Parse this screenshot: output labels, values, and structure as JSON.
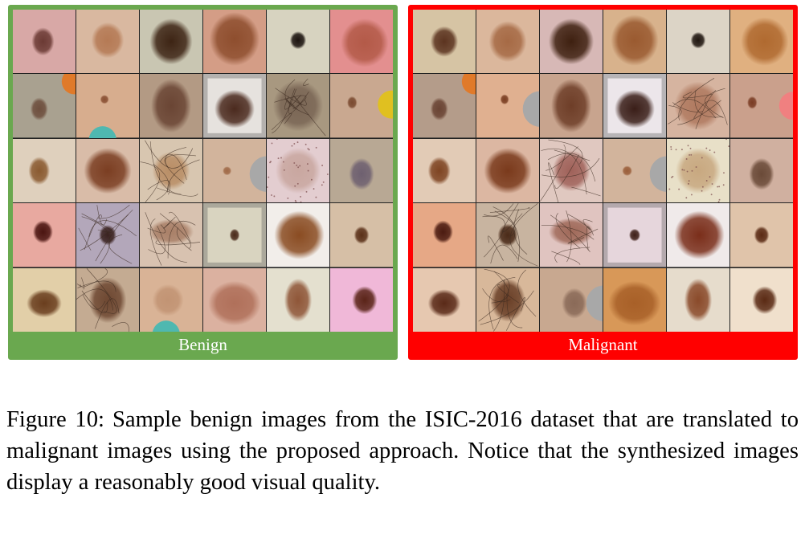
{
  "panels": [
    {
      "label": "Benign",
      "color": "#6aa84f",
      "tiles": [
        {
          "bg": "#d8a8a6",
          "lesion": "#6b3a34",
          "lx": 0.48,
          "ly": 0.5,
          "rx": 0.18,
          "ry": 0.22,
          "extra": "none"
        },
        {
          "bg": "#d9b8a0",
          "lesion": "#b57a55",
          "lx": 0.5,
          "ly": 0.48,
          "rx": 0.26,
          "ry": 0.28,
          "extra": "none"
        },
        {
          "bg": "#c9c6b2",
          "lesion": "#3d2414",
          "lx": 0.5,
          "ly": 0.5,
          "rx": 0.34,
          "ry": 0.36,
          "extra": "none"
        },
        {
          "bg": "#d49d86",
          "lesion": "#8e4e2e",
          "lx": 0.5,
          "ly": 0.46,
          "rx": 0.4,
          "ry": 0.42,
          "extra": "none"
        },
        {
          "bg": "#d7d3c0",
          "lesion": "#1c1410",
          "lx": 0.5,
          "ly": 0.48,
          "rx": 0.13,
          "ry": 0.14,
          "extra": "none"
        },
        {
          "bg": "#e38f8f",
          "lesion": "#b35a48",
          "lx": 0.55,
          "ly": 0.52,
          "rx": 0.38,
          "ry": 0.38,
          "extra": "none"
        },
        {
          "bg": "#a9a190",
          "lesion": "#6e4f3e",
          "lx": 0.42,
          "ly": 0.55,
          "rx": 0.14,
          "ry": 0.18,
          "extra": "orange"
        },
        {
          "bg": "#d7ad8e",
          "lesion": "#8a5033",
          "lx": 0.45,
          "ly": 0.4,
          "rx": 0.07,
          "ry": 0.07,
          "extra": "teal"
        },
        {
          "bg": "#b39a84",
          "lesion": "#6a4534",
          "lx": 0.5,
          "ly": 0.5,
          "rx": 0.32,
          "ry": 0.42,
          "extra": "none"
        },
        {
          "bg": "#e6e2de",
          "lesion": "#4b2a1e",
          "lx": 0.5,
          "ly": 0.55,
          "rx": 0.32,
          "ry": 0.3,
          "extra": "vignette"
        },
        {
          "bg": "#a89880",
          "lesion": "#7a6655",
          "lx": 0.5,
          "ly": 0.5,
          "rx": 0.4,
          "ry": 0.4,
          "extra": "hair"
        },
        {
          "bg": "#c9a890",
          "lesion": "#7a4a30",
          "lx": 0.35,
          "ly": 0.45,
          "rx": 0.08,
          "ry": 0.1,
          "extra": "yellow"
        },
        {
          "bg": "#dfd0bd",
          "lesion": "#8a5a30",
          "lx": 0.42,
          "ly": 0.5,
          "rx": 0.17,
          "ry": 0.22,
          "extra": "none"
        },
        {
          "bg": "#d9bca8",
          "lesion": "#7b3e22",
          "lx": 0.5,
          "ly": 0.5,
          "rx": 0.38,
          "ry": 0.36,
          "extra": "none"
        },
        {
          "bg": "#d8c6b0",
          "lesion": "#b98e66",
          "lx": 0.5,
          "ly": 0.5,
          "rx": 0.3,
          "ry": 0.3,
          "extra": "hair"
        },
        {
          "bg": "#d2b49c",
          "lesion": "#a06a48",
          "lx": 0.38,
          "ly": 0.5,
          "rx": 0.07,
          "ry": 0.07,
          "extra": "grey"
        },
        {
          "bg": "#e3cdd0",
          "lesion": "#c9a7a0",
          "lx": 0.5,
          "ly": 0.5,
          "rx": 0.36,
          "ry": 0.36,
          "extra": "dots"
        },
        {
          "bg": "#b8a894",
          "lesion": "#6e6070",
          "lx": 0.5,
          "ly": 0.55,
          "rx": 0.2,
          "ry": 0.25,
          "extra": "none"
        },
        {
          "bg": "#e8a9a0",
          "lesion": "#4a1410",
          "lx": 0.48,
          "ly": 0.45,
          "rx": 0.16,
          "ry": 0.18,
          "extra": "none"
        },
        {
          "bg": "#b3a7ba",
          "lesion": "#3a2220",
          "lx": 0.5,
          "ly": 0.5,
          "rx": 0.14,
          "ry": 0.16,
          "extra": "hair"
        },
        {
          "bg": "#d8c2b0",
          "lesion": "#a98068",
          "lx": 0.5,
          "ly": 0.45,
          "rx": 0.36,
          "ry": 0.2,
          "extra": "hair"
        },
        {
          "bg": "#d9d4c0",
          "lesion": "#4a2a1a",
          "lx": 0.5,
          "ly": 0.5,
          "rx": 0.08,
          "ry": 0.1,
          "extra": "vignette"
        },
        {
          "bg": "#f2eeea",
          "lesion": "#8a4c22",
          "lx": 0.52,
          "ly": 0.5,
          "rx": 0.4,
          "ry": 0.38,
          "extra": "none"
        },
        {
          "bg": "#d6bfa6",
          "lesion": "#5a3018",
          "lx": 0.5,
          "ly": 0.5,
          "rx": 0.12,
          "ry": 0.14,
          "extra": "none"
        },
        {
          "bg": "#e2cfa8",
          "lesion": "#6a3e1e",
          "lx": 0.5,
          "ly": 0.55,
          "rx": 0.28,
          "ry": 0.22,
          "extra": "none"
        },
        {
          "bg": "#c4ab92",
          "lesion": "#6e4832",
          "lx": 0.5,
          "ly": 0.5,
          "rx": 0.3,
          "ry": 0.36,
          "extra": "hair"
        },
        {
          "bg": "#d9b396",
          "lesion": "#c29474",
          "lx": 0.45,
          "ly": 0.5,
          "rx": 0.25,
          "ry": 0.25,
          "extra": "teal"
        },
        {
          "bg": "#dbb1a0",
          "lesion": "#b0705a",
          "lx": 0.5,
          "ly": 0.55,
          "rx": 0.42,
          "ry": 0.35,
          "extra": "none"
        },
        {
          "bg": "#e4e0cf",
          "lesion": "#8f5638",
          "lx": 0.5,
          "ly": 0.5,
          "rx": 0.22,
          "ry": 0.34,
          "extra": "none"
        },
        {
          "bg": "#f0b8d8",
          "lesion": "#5a2418",
          "lx": 0.55,
          "ly": 0.5,
          "rx": 0.2,
          "ry": 0.22,
          "extra": "none"
        }
      ]
    },
    {
      "label": "Malignant",
      "color": "#ff0000",
      "tiles": [
        {
          "bg": "#d6c4a4",
          "lesion": "#5c3420",
          "lx": 0.5,
          "ly": 0.5,
          "rx": 0.22,
          "ry": 0.24,
          "extra": "none"
        },
        {
          "bg": "#dbb79c",
          "lesion": "#a66a45",
          "lx": 0.5,
          "ly": 0.5,
          "rx": 0.3,
          "ry": 0.32,
          "extra": "none"
        },
        {
          "bg": "#d7b8b6",
          "lesion": "#3e2010",
          "lx": 0.5,
          "ly": 0.5,
          "rx": 0.36,
          "ry": 0.36,
          "extra": "none"
        },
        {
          "bg": "#d8b28c",
          "lesion": "#9a5a30",
          "lx": 0.5,
          "ly": 0.48,
          "rx": 0.38,
          "ry": 0.4,
          "extra": "none"
        },
        {
          "bg": "#dcd4c6",
          "lesion": "#201610",
          "lx": 0.5,
          "ly": 0.48,
          "rx": 0.12,
          "ry": 0.13,
          "extra": "none"
        },
        {
          "bg": "#e0b080",
          "lesion": "#b06a30",
          "lx": 0.55,
          "ly": 0.5,
          "rx": 0.38,
          "ry": 0.38,
          "extra": "none"
        },
        {
          "bg": "#b49c8a",
          "lesion": "#6a4434",
          "lx": 0.42,
          "ly": 0.55,
          "rx": 0.14,
          "ry": 0.18,
          "extra": "orange"
        },
        {
          "bg": "#e0b090",
          "lesion": "#7a3e22",
          "lx": 0.45,
          "ly": 0.4,
          "rx": 0.07,
          "ry": 0.08,
          "extra": "grey"
        },
        {
          "bg": "#c8a48e",
          "lesion": "#6e3e28",
          "lx": 0.5,
          "ly": 0.5,
          "rx": 0.32,
          "ry": 0.42,
          "extra": "none"
        },
        {
          "bg": "#ece6ea",
          "lesion": "#3a1e18",
          "lx": 0.5,
          "ly": 0.55,
          "rx": 0.32,
          "ry": 0.3,
          "extra": "vignette"
        },
        {
          "bg": "#d6b4a0",
          "lesion": "#b07a60",
          "lx": 0.5,
          "ly": 0.5,
          "rx": 0.38,
          "ry": 0.38,
          "extra": "hair"
        },
        {
          "bg": "#caa08c",
          "lesion": "#7a3c24",
          "lx": 0.35,
          "ly": 0.45,
          "rx": 0.08,
          "ry": 0.1,
          "extra": "pink"
        },
        {
          "bg": "#e2cbb6",
          "lesion": "#7e4422",
          "lx": 0.42,
          "ly": 0.5,
          "rx": 0.18,
          "ry": 0.22,
          "extra": "none"
        },
        {
          "bg": "#dcb7a2",
          "lesion": "#7a3a1c",
          "lx": 0.5,
          "ly": 0.5,
          "rx": 0.38,
          "ry": 0.36,
          "extra": "none"
        },
        {
          "bg": "#e0c8c0",
          "lesion": "#a0625a",
          "lx": 0.5,
          "ly": 0.5,
          "rx": 0.3,
          "ry": 0.32,
          "extra": "hair"
        },
        {
          "bg": "#d2b49c",
          "lesion": "#9a5e3a",
          "lx": 0.38,
          "ly": 0.5,
          "rx": 0.08,
          "ry": 0.08,
          "extra": "grey"
        },
        {
          "bg": "#e8e0c8",
          "lesion": "#c8a880",
          "lx": 0.5,
          "ly": 0.5,
          "rx": 0.36,
          "ry": 0.36,
          "extra": "dots"
        },
        {
          "bg": "#d0b0a0",
          "lesion": "#6a4a38",
          "lx": 0.5,
          "ly": 0.55,
          "rx": 0.2,
          "ry": 0.25,
          "extra": "none"
        },
        {
          "bg": "#e6a886",
          "lesion": "#4a1a10",
          "lx": 0.48,
          "ly": 0.45,
          "rx": 0.16,
          "ry": 0.18,
          "extra": "none"
        },
        {
          "bg": "#c8b4a0",
          "lesion": "#4a2a18",
          "lx": 0.5,
          "ly": 0.5,
          "rx": 0.16,
          "ry": 0.18,
          "extra": "hair"
        },
        {
          "bg": "#e0c4c0",
          "lesion": "#a06a5a",
          "lx": 0.5,
          "ly": 0.45,
          "rx": 0.36,
          "ry": 0.22,
          "extra": "hair"
        },
        {
          "bg": "#e6d6dc",
          "lesion": "#3e2018",
          "lx": 0.5,
          "ly": 0.5,
          "rx": 0.09,
          "ry": 0.1,
          "extra": "vignette"
        },
        {
          "bg": "#f0eaea",
          "lesion": "#7a2e1a",
          "lx": 0.52,
          "ly": 0.5,
          "rx": 0.4,
          "ry": 0.38,
          "extra": "none"
        },
        {
          "bg": "#e0c4aa",
          "lesion": "#5a2a14",
          "lx": 0.5,
          "ly": 0.5,
          "rx": 0.12,
          "ry": 0.14,
          "extra": "none"
        },
        {
          "bg": "#e6c8b0",
          "lesion": "#5a2a18",
          "lx": 0.5,
          "ly": 0.55,
          "rx": 0.26,
          "ry": 0.22,
          "extra": "none"
        },
        {
          "bg": "#d8b89a",
          "lesion": "#6a4028",
          "lx": 0.5,
          "ly": 0.5,
          "rx": 0.28,
          "ry": 0.34,
          "extra": "hair"
        },
        {
          "bg": "#c8a890",
          "lesion": "#8a6a58",
          "lx": 0.55,
          "ly": 0.55,
          "rx": 0.2,
          "ry": 0.24,
          "extra": "grey"
        },
        {
          "bg": "#d89858",
          "lesion": "#a86028",
          "lx": 0.5,
          "ly": 0.55,
          "rx": 0.42,
          "ry": 0.35,
          "extra": "none"
        },
        {
          "bg": "#e6dccc",
          "lesion": "#8a4a2a",
          "lx": 0.5,
          "ly": 0.5,
          "rx": 0.22,
          "ry": 0.34,
          "extra": "none"
        },
        {
          "bg": "#f0e0cc",
          "lesion": "#5a2a14",
          "lx": 0.55,
          "ly": 0.5,
          "rx": 0.2,
          "ry": 0.22,
          "extra": "none"
        }
      ]
    }
  ],
  "caption": {
    "figure_label": "Figure 10:",
    "text": "Sample benign images from the ISIC-2016 dataset that are translated to malignant images using the proposed approach. Notice that the synthesized images display a reasonably good visual quality."
  }
}
